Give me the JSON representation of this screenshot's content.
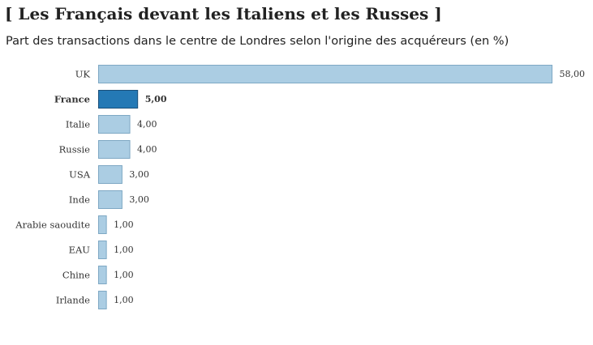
{
  "title": "[ Les Français devant les Italiens et les Russes ]",
  "subtitle": "Part des transactions dans le centre de Londres selon l'origine des acquéreurs (en %)",
  "chart_data": {
    "type": "bar",
    "orientation": "horizontal",
    "title": "[ Les Français devant les Italiens et les Russes ]",
    "subtitle": "Part des transactions dans le centre de Londres selon l'origine des acquéreurs (en %)",
    "categories": [
      "UK",
      "France",
      "Italie",
      "Russie",
      "USA",
      "Inde",
      "Arabie saoudite",
      "EAU",
      "Chine",
      "Irlande"
    ],
    "values": [
      58,
      5,
      4,
      4,
      3,
      3,
      1,
      1,
      1,
      1
    ],
    "value_labels": [
      "58,00",
      "5,00",
      "4,00",
      "4,00",
      "3,00",
      "3,00",
      "1,00",
      "1,00",
      "1,00",
      "1,00"
    ],
    "highlight": "France",
    "xlim": [
      0,
      58
    ],
    "grid": false,
    "legend": "none",
    "colors": {
      "bar": "#abcde3",
      "bar_border": "#7ea8c4",
      "highlight": "#2479b5",
      "highlight_border": "#1a4f7a"
    }
  }
}
